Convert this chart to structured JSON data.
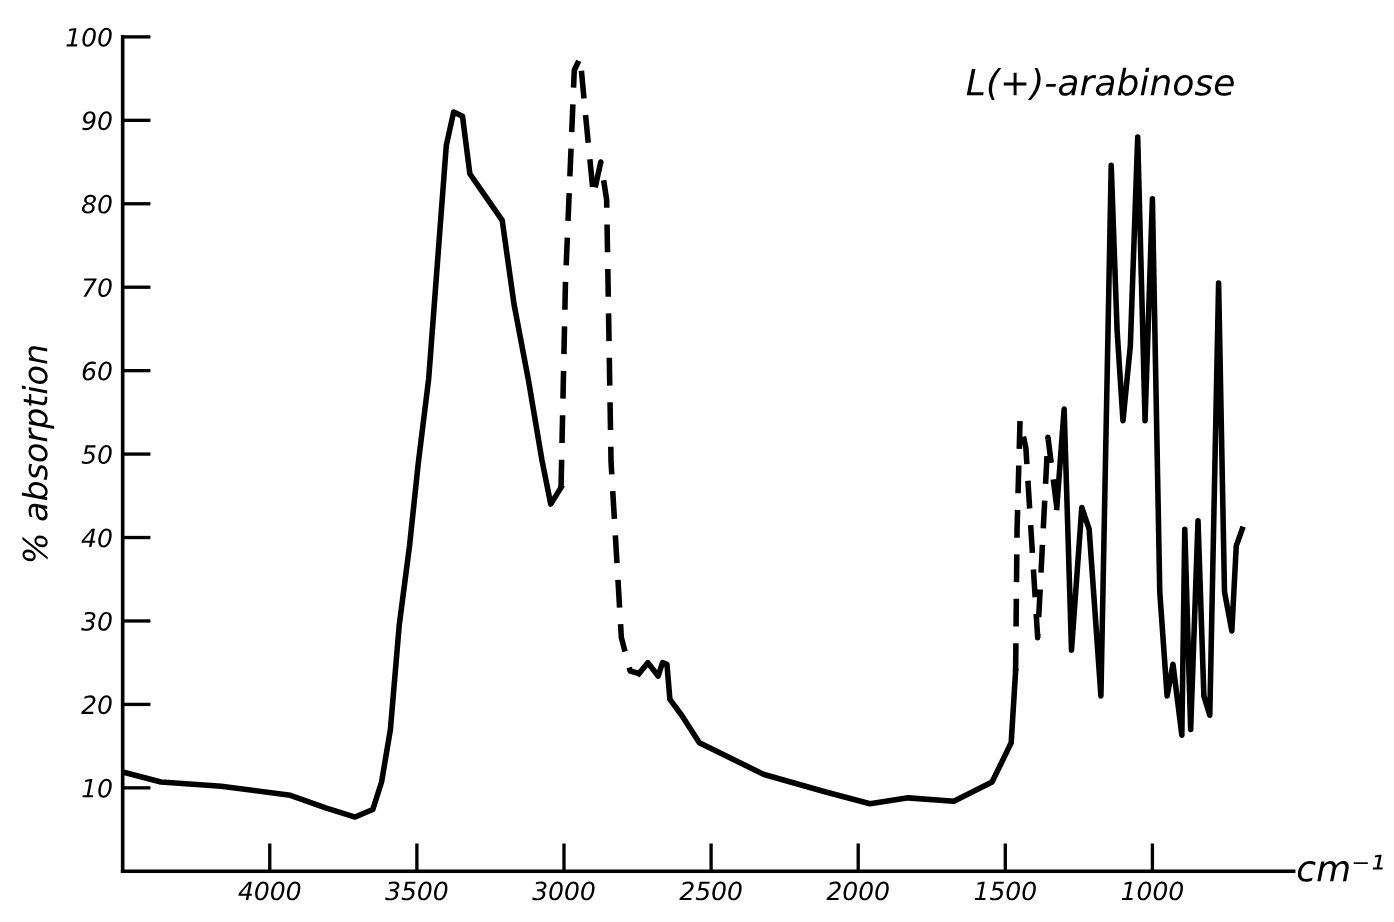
{
  "chart_data": {
    "type": "line",
    "title": "L(+)-arabinose",
    "xlabel": "cm⁻¹",
    "ylabel": "% absorption",
    "xlim": [
      4500,
      520
    ],
    "xticks": [
      4000,
      3500,
      3000,
      2500,
      2000,
      1500,
      1000
    ],
    "ylim": [
      0,
      100
    ],
    "yticks": [
      10,
      20,
      30,
      40,
      50,
      60,
      70,
      80,
      90,
      100
    ],
    "series": [
      {
        "color": "#000000",
        "line_style": "solid",
        "x": [
          4500,
          4370,
          4165,
          3930,
          3810,
          3710,
          3650,
          3620,
          3590,
          3560,
          3525,
          3495,
          3460,
          3430,
          3400,
          3375,
          3345,
          3320,
          3275,
          3210,
          3170,
          3120,
          3075,
          3045,
          3010
        ],
        "values": [
          11.9,
          10.7,
          10.2,
          9.1,
          7.6,
          6.5,
          7.4,
          10.7,
          17,
          29.5,
          39,
          49,
          59,
          73,
          87,
          91,
          90.5,
          83.6,
          81.3,
          78,
          68,
          58.7,
          49.3,
          44,
          46
        ]
      },
      {
        "color": "#000000",
        "line_style": "dashed",
        "x": [
          3010,
          2995,
          2965,
          2945,
          2925,
          2900,
          2875,
          2855,
          2840,
          2805,
          2775,
          2745
        ],
        "values": [
          46,
          70.5,
          96,
          97.5,
          90,
          81,
          85,
          80.5,
          49,
          28,
          24,
          23.7
        ]
      },
      {
        "color": "#000000",
        "line_style": "solid",
        "x": [
          2745,
          2715,
          2680,
          2665,
          2650,
          2640,
          2600,
          2540,
          2320,
          2110,
          1960,
          1830,
          1675,
          1545,
          1480,
          1465
        ],
        "values": [
          23.7,
          25,
          23.4,
          25,
          24.8,
          20.6,
          18.7,
          15.4,
          11.6,
          9.5,
          8.1,
          8.8,
          8.4,
          10.7,
          15.4,
          24
        ]
      },
      {
        "color": "#000000",
        "line_style": "dashed",
        "x": [
          1465,
          1460,
          1450,
          1430,
          1390,
          1355,
          1325
        ],
        "values": [
          24,
          41,
          54,
          50.7,
          28,
          52,
          43.6
        ]
      },
      {
        "color": "#000000",
        "line_style": "solid",
        "x": [
          1325,
          1300,
          1275,
          1240,
          1215,
          1175,
          1140,
          1120,
          1100,
          1075,
          1050,
          1025,
          1000,
          975,
          950,
          930,
          900,
          890,
          870,
          845,
          825,
          805,
          775,
          755,
          730,
          715,
          695
        ],
        "values": [
          43.6,
          55.4,
          26.5,
          43.6,
          41,
          21,
          84.6,
          64.8,
          54,
          63,
          88,
          54,
          80.6,
          33.5,
          21,
          24.8,
          16.3,
          41,
          17,
          42,
          21,
          18.7,
          70.5,
          33.5,
          28.8,
          39,
          41
        ]
      }
    ]
  }
}
